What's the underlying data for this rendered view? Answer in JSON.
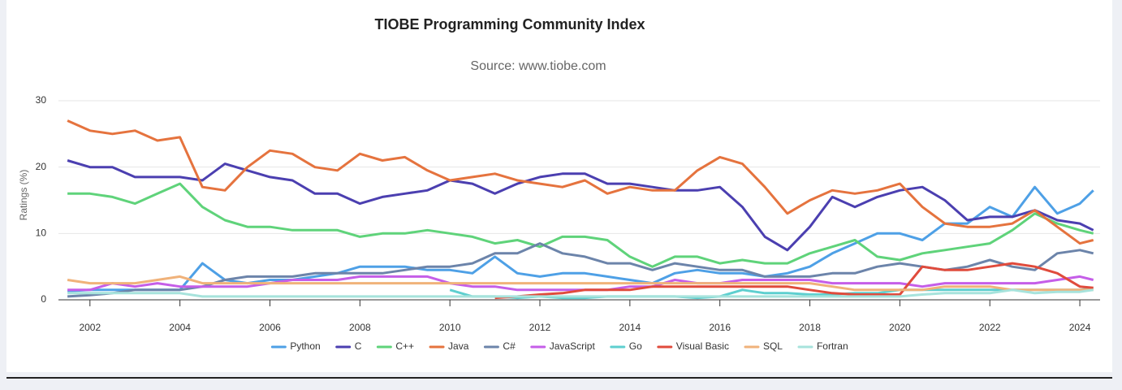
{
  "chart_data": {
    "type": "line",
    "title": "TIOBE Programming Community Index",
    "subtitle": "Source: www.tiobe.com",
    "y_label": "Ratings (%)",
    "x": [
      2001.5,
      2002,
      2002.5,
      2003,
      2003.5,
      2004,
      2004.5,
      2005,
      2005.5,
      2006,
      2006.5,
      2007,
      2007.5,
      2008,
      2008.5,
      2009,
      2009.5,
      2010,
      2010.5,
      2011,
      2011.5,
      2012,
      2012.5,
      2013,
      2013.5,
      2014,
      2014.5,
      2015,
      2015.5,
      2016,
      2016.5,
      2017,
      2017.5,
      2018,
      2018.5,
      2019,
      2019.5,
      2020,
      2020.5,
      2021,
      2021.5,
      2022,
      2022.5,
      2023,
      2023.5,
      2024,
      2024.3
    ],
    "xlim": [
      2001.3,
      2024.45
    ],
    "xticks": [
      2002,
      2004,
      2006,
      2008,
      2010,
      2012,
      2014,
      2016,
      2018,
      2020,
      2022,
      2024
    ],
    "ylim": [
      0,
      30
    ],
    "yticks": [
      0,
      10,
      20,
      30
    ],
    "grid": true,
    "legend": "bottom",
    "series": [
      {
        "name": "Python",
        "color": "#4ea0e6",
        "values": [
          1.3,
          1.5,
          1.5,
          1.5,
          1.5,
          1.5,
          5.5,
          3,
          2.5,
          3,
          3,
          3.5,
          4,
          5,
          5,
          5,
          4.5,
          4.5,
          4,
          6.5,
          4,
          3.5,
          4,
          4,
          3.5,
          3,
          2.5,
          4,
          4.5,
          4,
          4,
          3.5,
          4,
          5,
          7,
          8.5,
          10,
          10,
          9,
          11.5,
          11.5,
          14,
          12.5,
          17,
          13,
          14.5,
          16.5
        ]
      },
      {
        "name": "C",
        "color": "#4b3fb0",
        "values": [
          21,
          20,
          20,
          18.5,
          18.5,
          18.5,
          18,
          20.5,
          19.5,
          18.5,
          18,
          16,
          16,
          14.5,
          15.5,
          16,
          16.5,
          18,
          17.5,
          16,
          17.5,
          18.5,
          19,
          19,
          17.5,
          17.5,
          17,
          16.5,
          16.5,
          17,
          14,
          9.5,
          7.5,
          11,
          15.5,
          14,
          15.5,
          16.5,
          17,
          15,
          12,
          12.5,
          12.5,
          13.5,
          12,
          11.5,
          10.5
        ]
      },
      {
        "name": "C++",
        "color": "#5fd37a",
        "values": [
          16,
          16,
          15.5,
          14.5,
          16,
          17.5,
          14,
          12,
          11,
          11,
          10.5,
          10.5,
          10.5,
          9.5,
          10,
          10,
          10.5,
          10,
          9.5,
          8.5,
          9,
          8,
          9.5,
          9.5,
          9,
          6.5,
          5,
          6.5,
          6.5,
          5.5,
          6,
          5.5,
          5.5,
          7,
          8,
          9,
          6.5,
          6,
          7,
          7.5,
          8,
          8.5,
          10.5,
          13,
          11.5,
          10.5,
          10
        ]
      },
      {
        "name": "Java",
        "color": "#e5733e",
        "values": [
          27,
          25.5,
          25,
          25.5,
          24,
          24.5,
          17,
          16.5,
          20,
          22.5,
          22,
          20,
          19.5,
          22,
          21,
          21.5,
          19.5,
          18,
          18.5,
          19,
          18,
          17.5,
          17,
          18,
          16,
          17,
          16.5,
          16.5,
          19.5,
          21.5,
          20.5,
          17,
          13,
          15,
          16.5,
          16,
          16.5,
          17.5,
          14,
          11.5,
          11,
          11,
          11.5,
          13.5,
          11,
          8.5,
          9
        ]
      },
      {
        "name": "C#",
        "color": "#6c84aa",
        "values": [
          0.5,
          0.7,
          1,
          1.5,
          1.5,
          1.5,
          2,
          3,
          3.5,
          3.5,
          3.5,
          4,
          4,
          4,
          4,
          4.5,
          5,
          5,
          5.5,
          7,
          7,
          8.5,
          7,
          6.5,
          5.5,
          5.5,
          4.5,
          5.5,
          5,
          4.5,
          4.5,
          3.5,
          3.5,
          3.5,
          4,
          4,
          5,
          5.5,
          5,
          4.5,
          5,
          6,
          5,
          4.5,
          7,
          7.5,
          7
        ]
      },
      {
        "name": "JavaScript",
        "color": "#c55ee8",
        "values": [
          1.5,
          1.5,
          2.5,
          2,
          2.5,
          2,
          2,
          2,
          2,
          2.5,
          3,
          3,
          3,
          3.5,
          3.5,
          3.5,
          3.5,
          2.5,
          2,
          2,
          1.5,
          1.5,
          1.5,
          1.5,
          1.5,
          2,
          2,
          3,
          2.5,
          2.5,
          3,
          3,
          3,
          3,
          2.5,
          2.5,
          2.5,
          2.5,
          2,
          2.5,
          2.5,
          2.5,
          2.5,
          2.5,
          3,
          3.5,
          3
        ]
      },
      {
        "name": "Go",
        "color": "#5ecfcf",
        "values": [
          null,
          null,
          null,
          null,
          null,
          null,
          null,
          null,
          null,
          null,
          null,
          null,
          null,
          null,
          null,
          null,
          null,
          1.5,
          0.5,
          0.5,
          0.3,
          0.5,
          0.3,
          0.3,
          0.5,
          0.5,
          0.5,
          0.5,
          0.3,
          0.5,
          1.5,
          1,
          1,
          0.8,
          0.8,
          1,
          1,
          1.5,
          1.5,
          1.5,
          1.5,
          1.5,
          1.5,
          1.5,
          1.5,
          1.5,
          1.8
        ]
      },
      {
        "name": "Visual Basic",
        "color": "#e04b3c",
        "values": [
          null,
          null,
          null,
          null,
          null,
          null,
          null,
          null,
          null,
          null,
          null,
          null,
          null,
          null,
          null,
          null,
          null,
          null,
          null,
          0.3,
          0.5,
          0.8,
          1,
          1.5,
          1.5,
          1.5,
          2,
          2,
          2,
          2,
          2,
          2,
          2,
          1.5,
          1,
          0.8,
          0.8,
          0.8,
          5,
          4.5,
          4.5,
          5,
          5.5,
          5,
          4,
          2,
          1.8
        ]
      },
      {
        "name": "SQL",
        "color": "#f0b27a",
        "values": [
          3,
          2.5,
          2.5,
          2.5,
          3,
          3.5,
          2.5,
          2.5,
          2.5,
          2.5,
          2.5,
          2.5,
          2.5,
          2.5,
          2.5,
          2.5,
          2.5,
          2.5,
          2.5,
          2.5,
          2.5,
          2.5,
          2.5,
          2.5,
          2.5,
          2.5,
          2.5,
          2.5,
          2.5,
          2.5,
          2.5,
          2.5,
          2.5,
          2.5,
          2,
          1.5,
          1.5,
          1.5,
          1.5,
          2,
          2,
          2,
          1.5,
          1.5,
          1.5,
          1.5,
          1.5
        ]
      },
      {
        "name": "Fortran",
        "color": "#a7e3dc",
        "values": [
          1,
          1,
          1,
          1,
          1,
          1,
          0.5,
          0.5,
          0.5,
          0.5,
          0.5,
          0.5,
          0.5,
          0.5,
          0.5,
          0.5,
          0.5,
          0.5,
          0.5,
          0.5,
          0.5,
          0.5,
          0.5,
          0.5,
          0.5,
          0.5,
          0.5,
          0.5,
          0.5,
          0.5,
          0.5,
          0.5,
          0.5,
          0.5,
          0.5,
          0.5,
          0.5,
          0.5,
          0.8,
          1,
          1,
          1,
          1.5,
          1,
          1.2,
          1.2,
          1.5
        ]
      }
    ]
  }
}
